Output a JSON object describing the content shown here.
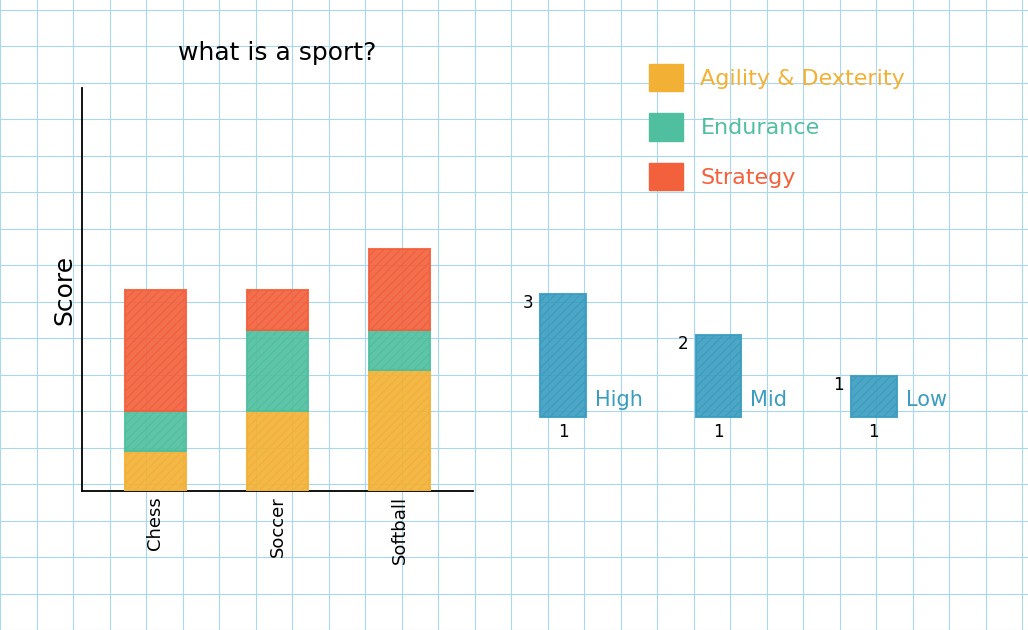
{
  "chart_data": {
    "type": "bar",
    "title": "what is a sport?",
    "y_label": "Score",
    "categories": [
      "Chess",
      "Soccer",
      "Softball"
    ],
    "stacked": true,
    "series": [
      {
        "name": "Agility & Dexterity",
        "color": "#f2b134",
        "values": [
          1,
          2,
          3
        ]
      },
      {
        "name": "Endurance",
        "color": "#4fbf9f",
        "values": [
          1,
          2,
          1
        ]
      },
      {
        "name": "Strategy",
        "color": "#f2603c",
        "values": [
          3,
          1,
          2
        ]
      }
    ],
    "ylim": [
      0,
      10
    ],
    "tick_labels": "x",
    "legend": "upper right",
    "scale_key": {
      "color": "#3a9dbf",
      "width": 1,
      "levels": [
        {
          "value": 3,
          "label": "High"
        },
        {
          "value": 2,
          "label": "Mid"
        },
        {
          "value": 1,
          "label": "Low"
        }
      ]
    }
  }
}
